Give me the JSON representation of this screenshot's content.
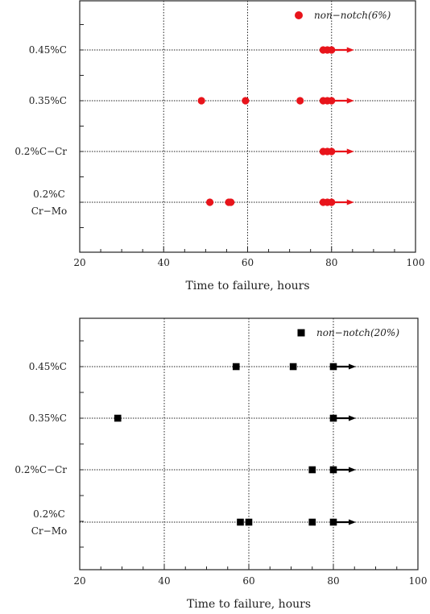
{
  "chart_data": [
    {
      "type": "scatter",
      "categories": [
        "0.45%C",
        "0.35%C",
        "0.2%C−Cr",
        "0.2%C\nCr−Mo"
      ],
      "xlim": [
        20,
        100
      ],
      "xticks": [
        20,
        40,
        60,
        80,
        100
      ],
      "xlabel": "Time to failure, hours",
      "grid": "dotted",
      "legend_position": "top-right",
      "series": [
        {
          "name": "non−notch(6%)",
          "marker": "circle",
          "color": "#e8141b",
          "points": [
            {
              "category": "0.45%C",
              "x": 78,
              "runout": false
            },
            {
              "category": "0.45%C",
              "x": 79,
              "runout": false
            },
            {
              "category": "0.45%C",
              "x": 80,
              "runout": true
            },
            {
              "category": "0.35%C",
              "x": 49,
              "runout": false
            },
            {
              "category": "0.35%C",
              "x": 59.5,
              "runout": false
            },
            {
              "category": "0.35%C",
              "x": 72.5,
              "runout": false
            },
            {
              "category": "0.35%C",
              "x": 78,
              "runout": false
            },
            {
              "category": "0.35%C",
              "x": 79,
              "runout": false
            },
            {
              "category": "0.35%C",
              "x": 80,
              "runout": true
            },
            {
              "category": "0.2%C−Cr",
              "x": 78,
              "runout": false
            },
            {
              "category": "0.2%C−Cr",
              "x": 79,
              "runout": false
            },
            {
              "category": "0.2%C−Cr",
              "x": 80,
              "runout": true
            },
            {
              "category": "0.2%C\nCr−Mo",
              "x": 51,
              "runout": false
            },
            {
              "category": "0.2%C\nCr−Mo",
              "x": 55.5,
              "runout": false
            },
            {
              "category": "0.2%C\nCr−Mo",
              "x": 56,
              "runout": false
            },
            {
              "category": "0.2%C\nCr−Mo",
              "x": 78,
              "runout": false
            },
            {
              "category": "0.2%C\nCr−Mo",
              "x": 79,
              "runout": false
            },
            {
              "category": "0.2%C\nCr−Mo",
              "x": 80,
              "runout": true
            }
          ]
        }
      ]
    },
    {
      "type": "scatter",
      "categories": [
        "0.45%C",
        "0.35%C",
        "0.2%C−Cr",
        "0.2%C\nCr−Mo"
      ],
      "xlim": [
        20,
        100
      ],
      "xticks": [
        20,
        40,
        60,
        80,
        100
      ],
      "xlabel": "Time to failure, hours",
      "grid": "dotted",
      "legend_position": "top-right",
      "series": [
        {
          "name": "non−notch(20%)",
          "marker": "square",
          "color": "#000000",
          "points": [
            {
              "category": "0.45%C",
              "x": 57,
              "runout": false
            },
            {
              "category": "0.45%C",
              "x": 70.5,
              "runout": false
            },
            {
              "category": "0.45%C",
              "x": 80,
              "runout": true
            },
            {
              "category": "0.35%C",
              "x": 29,
              "runout": false
            },
            {
              "category": "0.35%C",
              "x": 80,
              "runout": true
            },
            {
              "category": "0.2%C−Cr",
              "x": 75,
              "runout": false
            },
            {
              "category": "0.2%C−Cr",
              "x": 80,
              "runout": true
            },
            {
              "category": "0.2%C\nCr−Mo",
              "x": 58,
              "runout": false
            },
            {
              "category": "0.2%C\nCr−Mo",
              "x": 60,
              "runout": false
            },
            {
              "category": "0.2%C\nCr−Mo",
              "x": 75,
              "runout": false
            },
            {
              "category": "0.2%C\nCr−Mo",
              "x": 80,
              "runout": true
            }
          ]
        }
      ]
    }
  ]
}
